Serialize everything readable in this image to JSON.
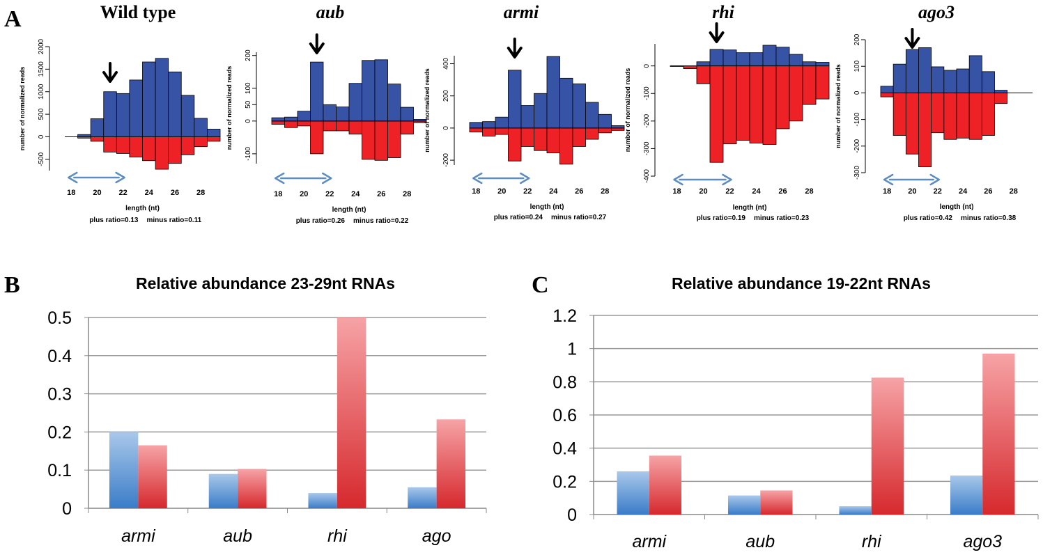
{
  "panel_labels": {
    "a": "A",
    "b": "B",
    "c": "C"
  },
  "colors": {
    "plus": "#3753a5",
    "minus": "#ee2127",
    "blue_top": "#a9c8ea",
    "blue_bottom": "#3a7cc8",
    "red_top": "#f6a3a6",
    "red_bottom": "#d6292d",
    "arrow_span": "#5b8dc3",
    "grid": "#999999"
  },
  "icons": {
    "peak_marker": "down-arrow-icon",
    "range_marker": "double-arrow-icon"
  },
  "chart_data": [
    {
      "type": "bar",
      "panel": "A",
      "title": "Wild type",
      "ylabel": "number of normalized reads",
      "xlabel": "length (nt)",
      "plus_ratio_text": "plus ratio=0.13",
      "minus_ratio_text": "minus ratio=0.11",
      "x": [
        18,
        19,
        20,
        21,
        22,
        23,
        24,
        25,
        26,
        27,
        28,
        29
      ],
      "xticks": [
        "18",
        "20",
        "22",
        "24",
        "26",
        "28"
      ],
      "yticks": [
        "-500",
        "0",
        "500",
        "1000",
        "1500",
        "2000"
      ],
      "ylim": [
        -750,
        2000
      ],
      "series": [
        {
          "values": [
            0,
            50,
            400,
            1000,
            960,
            1260,
            1660,
            1740,
            1440,
            920,
            410,
            170
          ]
        },
        {
          "values": [
            0,
            -30,
            -100,
            -340,
            -370,
            -450,
            -530,
            -720,
            -590,
            -400,
            -220,
            -100
          ]
        }
      ],
      "arrow_at": 21,
      "range": [
        18,
        22
      ]
    },
    {
      "type": "bar",
      "panel": "A",
      "title": "aub",
      "ylabel": "number of normalized reads",
      "xlabel": "length (nt)",
      "plus_ratio_text": "plus ratio=0.26",
      "minus_ratio_text": "minus ratio=0.22",
      "x": [
        18,
        19,
        20,
        21,
        22,
        23,
        24,
        25,
        26,
        27,
        28,
        29
      ],
      "xticks": [
        "18",
        "20",
        "22",
        "24",
        "26",
        "28"
      ],
      "yticks": [
        "-100",
        "0",
        "50",
        "100",
        "200"
      ],
      "ylim": [
        -130,
        210
      ],
      "series": [
        {
          "values": [
            10,
            12,
            30,
            180,
            50,
            43,
            115,
            185,
            187,
            113,
            42,
            5
          ]
        },
        {
          "values": [
            -10,
            -20,
            -15,
            -100,
            -30,
            -30,
            -40,
            -117,
            -120,
            -112,
            -40,
            -5
          ]
        }
      ],
      "arrow_at": 21,
      "range": [
        18,
        22
      ]
    },
    {
      "type": "bar",
      "panel": "A",
      "title": "armi",
      "ylabel": "number of normalized reads",
      "xlabel": "length (nt)",
      "plus_ratio_text": "plus ratio=0.24",
      "minus_ratio_text": "minus ratio=0.27",
      "x": [
        18,
        19,
        20,
        21,
        22,
        23,
        24,
        25,
        26,
        27,
        28,
        29
      ],
      "xticks": [
        "18",
        "20",
        "22",
        "24",
        "26",
        "28"
      ],
      "yticks": [
        "-200",
        "0",
        "200",
        "400"
      ],
      "ylim": [
        -230,
        450
      ],
      "series": [
        {
          "values": [
            35,
            40,
            68,
            360,
            140,
            215,
            445,
            310,
            275,
            160,
            85,
            15
          ]
        },
        {
          "values": [
            -25,
            -50,
            -40,
            -205,
            -115,
            -140,
            -155,
            -225,
            -115,
            -70,
            -30,
            -15
          ]
        }
      ],
      "arrow_at": 21,
      "range": [
        18,
        22
      ]
    },
    {
      "type": "bar",
      "panel": "A",
      "title": "rhi",
      "ylabel": "number of normalized reads",
      "xlabel": "length (nt)",
      "plus_ratio_text": "plus ratio=0.19",
      "minus_ratio_text": "minus ratio=0.23",
      "x": [
        18,
        19,
        20,
        21,
        22,
        23,
        24,
        25,
        26,
        27,
        28,
        29
      ],
      "xticks": [
        "18",
        "20",
        "22",
        "24",
        "26",
        "28"
      ],
      "yticks": [
        "-400",
        "-300",
        "-200",
        "-100",
        "0"
      ],
      "ylim": [
        -400,
        80
      ],
      "series": [
        {
          "values": [
            0,
            0,
            15,
            60,
            58,
            48,
            48,
            75,
            68,
            42,
            15,
            13
          ]
        },
        {
          "values": [
            -2,
            -10,
            -65,
            -350,
            -283,
            -270,
            -280,
            -285,
            -228,
            -200,
            -140,
            -120
          ]
        }
      ],
      "arrow_at": 21,
      "range": [
        18,
        22
      ]
    },
    {
      "type": "bar",
      "panel": "A",
      "title": "ago3",
      "ylabel": "number of normalized reads",
      "xlabel": "length (nt)",
      "plus_ratio_text": "plus ratio=0.42",
      "minus_ratio_text": "minus ratio=0.38",
      "x": [
        18,
        19,
        20,
        21,
        22,
        23,
        24,
        25,
        26,
        27,
        28,
        29
      ],
      "xticks": [
        "18",
        "20",
        "22",
        "24",
        "26",
        "28"
      ],
      "yticks": [
        "-300",
        "-200",
        "-100",
        "0",
        "100",
        "200"
      ],
      "ylim": [
        -300,
        200
      ],
      "series": [
        {
          "values": [
            25,
            108,
            163,
            170,
            98,
            85,
            90,
            140,
            80,
            10,
            0,
            0
          ]
        },
        {
          "values": [
            -15,
            -160,
            -230,
            -278,
            -150,
            -175,
            -170,
            -175,
            -160,
            -40,
            0,
            0
          ]
        }
      ],
      "arrow_at": 20,
      "range": [
        18,
        22
      ]
    },
    {
      "type": "bar",
      "panel": "B",
      "title": "Relative abundance 23-29nt RNAs",
      "categories": [
        "armi",
        "aub",
        "rhi",
        "ago"
      ],
      "yticks": [
        "0",
        "0.1",
        "0.2",
        "0.3",
        "0.4",
        "0.5"
      ],
      "ylim": [
        0,
        0.5
      ],
      "grid": true,
      "series": [
        {
          "values": [
            0.2,
            0.09,
            0.04,
            0.055
          ]
        },
        {
          "values": [
            0.165,
            0.103,
            0.5,
            0.233
          ]
        }
      ]
    },
    {
      "type": "bar",
      "panel": "C",
      "title": "Relative abundance 19-22nt RNAs",
      "categories": [
        "armi",
        "aub",
        "rhi",
        "ago3"
      ],
      "yticks": [
        "0",
        "0.2",
        "0.4",
        "0.6",
        "0.8",
        "1",
        "1.2"
      ],
      "ylim": [
        0,
        1.2
      ],
      "grid": true,
      "series": [
        {
          "values": [
            0.26,
            0.115,
            0.05,
            0.235
          ]
        },
        {
          "values": [
            0.355,
            0.145,
            0.825,
            0.97
          ]
        }
      ]
    }
  ]
}
